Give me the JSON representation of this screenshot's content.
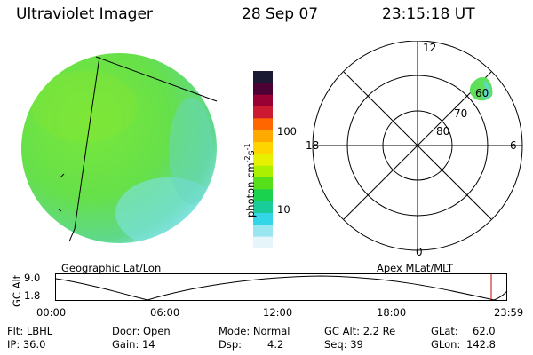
{
  "header": {
    "instrument": "Ultraviolet Imager",
    "date": "28 Sep 07",
    "time": "23:15:18 UT"
  },
  "colorbar": {
    "unit_prefix": "photon cm",
    "unit_exp1": "-2",
    "unit_mid": "s",
    "unit_exp2": "-1",
    "ticks": [
      "100",
      "10"
    ],
    "colors": [
      "#1a1a33",
      "#4d0033",
      "#990033",
      "#cc1a33",
      "#ff6600",
      "#ffaa00",
      "#ffd500",
      "#e6f000",
      "#aaf000",
      "#55e01a",
      "#1ad24d",
      "#1acc99",
      "#33d6e6",
      "#99e6f0",
      "#e6f5fa"
    ]
  },
  "polar": {
    "mlt_labels": {
      "top": "12",
      "left": "18",
      "right": "6",
      "bottom": "0"
    },
    "lat_labels": [
      "60",
      "70",
      "80"
    ]
  },
  "captions": {
    "left": "Geographic Lat/Lon",
    "right": "Apex MLat/MLT"
  },
  "timeline": {
    "ylabel": "GC Alt",
    "yticks": [
      "9.0",
      "1.8"
    ],
    "xticks": [
      "00:00",
      "06:00",
      "12:00",
      "18:00",
      "23:59"
    ],
    "marker_color": "#cc0000"
  },
  "info": {
    "filter": "Flt: LBHL",
    "ip": "IP: 36.0",
    "door": "Door: Open",
    "gain": "Gain: 14",
    "mode": "Mode: Normal",
    "dsp_label": "Dsp:",
    "dsp_value": "4.2",
    "gc_alt": "GC Alt: 2.2 Re",
    "seq": "Seq: 39",
    "glat_label": "GLat:",
    "glat_value": "62.0",
    "glon_label": "GLon:",
    "glon_value": "142.8"
  }
}
